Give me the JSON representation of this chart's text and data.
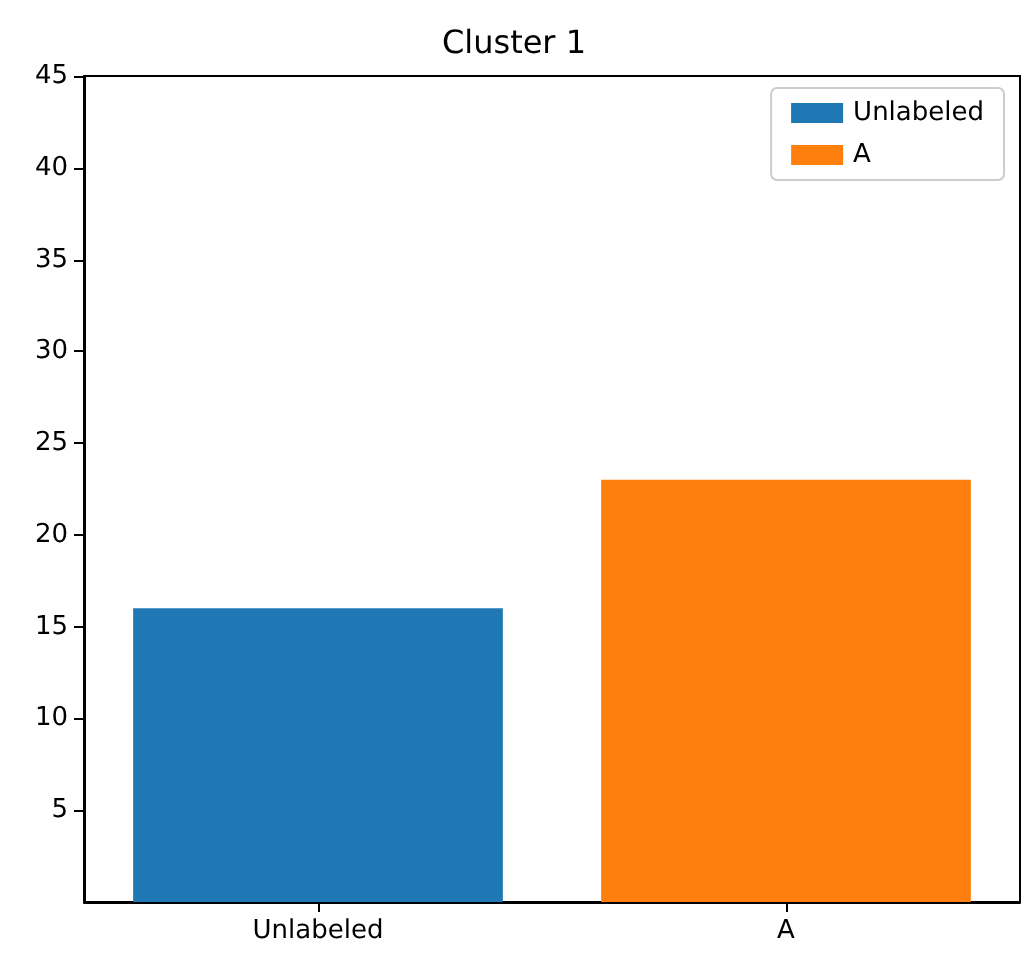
{
  "chart_data": {
    "type": "bar",
    "title": "Cluster 1",
    "categories": [
      "Unlabeled",
      "A"
    ],
    "series": [
      {
        "name": "Unlabeled",
        "color": "#1f77b4",
        "values": [
          16,
          null
        ]
      },
      {
        "name": "A",
        "color": "#ff7f0e",
        "values": [
          null,
          23
        ]
      }
    ],
    "ylim": [
      0,
      45
    ],
    "yticks": [
      5,
      10,
      15,
      20,
      25,
      30,
      35,
      40,
      45
    ],
    "grid": false,
    "legend": "top right"
  }
}
